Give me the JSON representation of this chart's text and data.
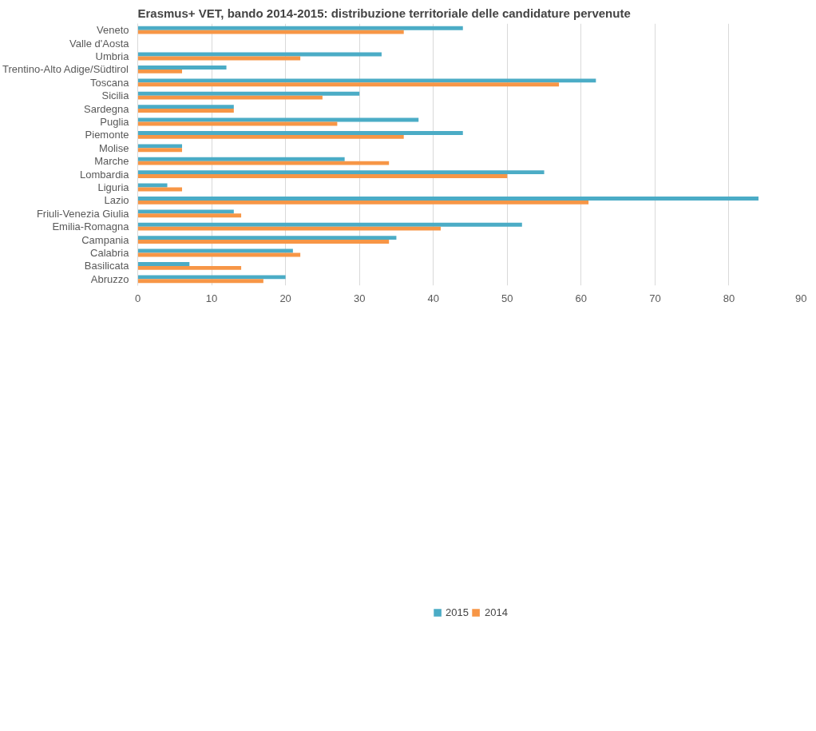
{
  "chart_data": {
    "type": "bar",
    "orientation": "horizontal",
    "title": "Erasmus+ VET, bando 2014-2015: distribuzione territoriale delle candidature pervenute",
    "categories": [
      "Veneto",
      "Valle d'Aosta",
      "Umbria",
      "Trentino-Alto Adige/Südtirol",
      "Toscana",
      "Sicilia",
      "Sardegna",
      "Puglia",
      "Piemonte",
      "Molise",
      "Marche",
      "Lombardia",
      "Liguria",
      "Lazio",
      "Friuli-Venezia Giulia",
      "Emilia-Romagna",
      "Campania",
      "Calabria",
      "Basilicata",
      "Abruzzo"
    ],
    "series": [
      {
        "name": "2015",
        "color": "#4bacc6",
        "values": [
          44,
          0,
          33,
          12,
          62,
          30,
          13,
          38,
          44,
          6,
          28,
          55,
          4,
          84,
          13,
          52,
          35,
          21,
          7,
          20
        ]
      },
      {
        "name": "2014",
        "color": "#f79646",
        "values": [
          36,
          0,
          22,
          6,
          57,
          25,
          13,
          27,
          36,
          6,
          34,
          50,
          6,
          61,
          14,
          41,
          34,
          22,
          14,
          17
        ]
      }
    ],
    "xlim": [
      0,
      90
    ],
    "xticks": [
      0,
      10,
      20,
      30,
      40,
      50,
      60,
      70,
      80,
      90
    ],
    "grid": "x",
    "legend": "bottom"
  }
}
